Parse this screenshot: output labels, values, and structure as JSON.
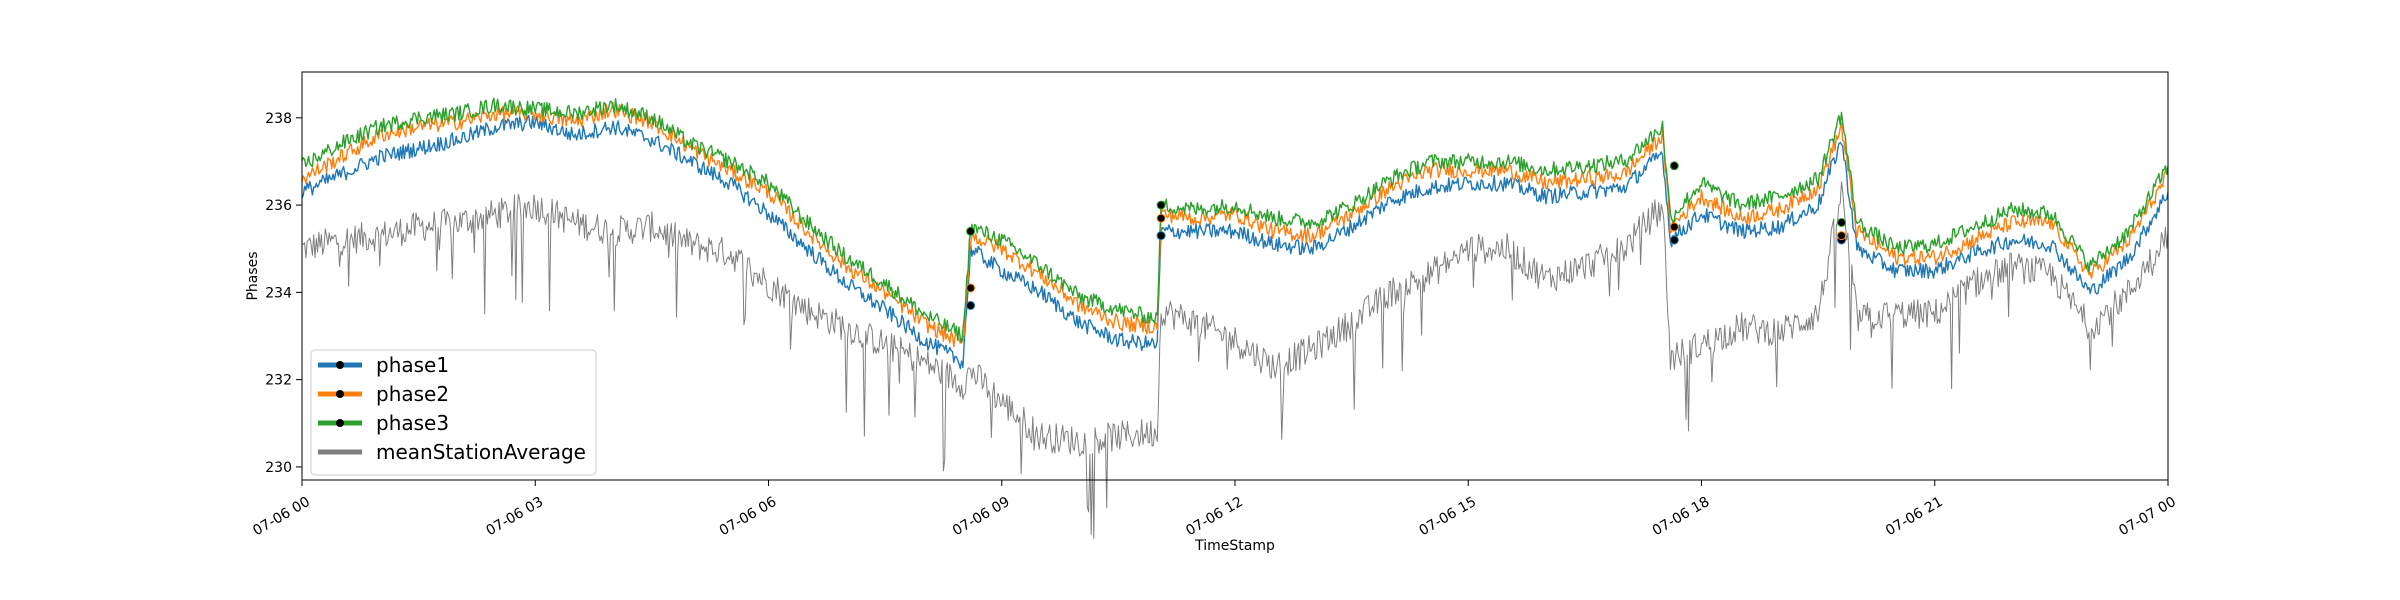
{
  "chart_data": {
    "type": "line",
    "title": "",
    "xlabel": "TimeStamp",
    "ylabel": "Phases",
    "x_range": [
      "07-06 00:00",
      "07-07 00:00"
    ],
    "x_ticks": [
      {
        "hour": 0,
        "label": "07-06 00"
      },
      {
        "hour": 3,
        "label": "07-06 03"
      },
      {
        "hour": 6,
        "label": "07-06 06"
      },
      {
        "hour": 9,
        "label": "07-06 09"
      },
      {
        "hour": 12,
        "label": "07-06 12"
      },
      {
        "hour": 15,
        "label": "07-06 15"
      },
      {
        "hour": 18,
        "label": "07-06 18"
      },
      {
        "hour": 21,
        "label": "07-06 21"
      },
      {
        "hour": 24,
        "label": "07-07 00"
      }
    ],
    "ylim": [
      229.7,
      239.05
    ],
    "y_ticks": [
      230,
      232,
      234,
      236,
      238
    ],
    "grid": false,
    "legend_position": "lower-left",
    "x": [
      0,
      0.5,
      1,
      1.5,
      2,
      2.5,
      3,
      3.5,
      4,
      4.5,
      5,
      5.5,
      6,
      6.5,
      7,
      7.5,
      8,
      8.5,
      8.6,
      9,
      9.5,
      10,
      10.5,
      11,
      11.05,
      11.5,
      12,
      12.5,
      13,
      13.5,
      14,
      14.5,
      15,
      15.5,
      16,
      16.5,
      17,
      17.5,
      17.6,
      18,
      18.5,
      19,
      19.5,
      19.8,
      20,
      20.5,
      21,
      21.5,
      22,
      22.5,
      23,
      23.5,
      24
    ],
    "series": [
      {
        "name": "phase1",
        "color": "#1f77b4",
        "values": [
          236.3,
          236.7,
          237.1,
          237.3,
          237.5,
          237.8,
          237.9,
          237.6,
          237.8,
          237.5,
          237.0,
          236.5,
          235.8,
          235.0,
          234.2,
          233.6,
          232.9,
          232.4,
          235.0,
          234.5,
          234.0,
          233.3,
          232.9,
          232.8,
          235.4,
          235.4,
          235.4,
          235.1,
          235.0,
          235.5,
          236.1,
          236.4,
          236.5,
          236.5,
          236.2,
          236.3,
          236.4,
          237.2,
          235.2,
          235.8,
          235.4,
          235.5,
          236.0,
          237.5,
          235.0,
          234.5,
          234.5,
          234.9,
          235.2,
          235.1,
          234.0,
          234.8,
          236.3
        ]
      },
      {
        "name": "phase2",
        "color": "#ff7f0e",
        "values": [
          236.6,
          237.1,
          237.6,
          237.8,
          237.9,
          238.1,
          238.1,
          237.9,
          238.2,
          237.9,
          237.3,
          236.8,
          236.3,
          235.4,
          234.6,
          234.0,
          233.3,
          232.8,
          235.3,
          235.0,
          234.4,
          233.7,
          233.3,
          233.2,
          235.8,
          235.7,
          235.8,
          235.4,
          235.3,
          235.8,
          236.4,
          236.8,
          236.8,
          236.8,
          236.5,
          236.6,
          236.7,
          237.6,
          235.5,
          236.2,
          235.7,
          235.9,
          236.4,
          237.8,
          235.4,
          234.8,
          234.8,
          235.2,
          235.6,
          235.6,
          234.4,
          235.2,
          236.7
        ]
      },
      {
        "name": "phase3",
        "color": "#2ca02c",
        "values": [
          236.9,
          237.4,
          237.8,
          238.0,
          238.1,
          238.3,
          238.2,
          238.1,
          238.3,
          238.0,
          237.4,
          237.0,
          236.5,
          235.6,
          234.8,
          234.2,
          233.5,
          233.0,
          235.5,
          235.2,
          234.6,
          233.9,
          233.6,
          233.4,
          236.0,
          235.9,
          236.0,
          235.7,
          235.6,
          236.0,
          236.6,
          237.0,
          237.0,
          237.0,
          236.8,
          236.9,
          237.0,
          237.8,
          235.7,
          236.5,
          236.0,
          236.2,
          236.6,
          238.1,
          235.6,
          235.0,
          235.1,
          235.5,
          235.9,
          235.8,
          234.6,
          235.4,
          236.9
        ]
      },
      {
        "name": "meanStationAverage",
        "color": "#7f7f7f",
        "values": [
          235.0,
          235.2,
          235.3,
          235.5,
          235.6,
          235.8,
          236.0,
          235.6,
          235.4,
          235.5,
          235.1,
          234.9,
          234.2,
          233.6,
          233.2,
          232.8,
          232.4,
          231.9,
          232.2,
          231.5,
          230.7,
          230.6,
          230.7,
          230.8,
          233.6,
          233.3,
          232.9,
          232.3,
          232.7,
          233.3,
          234.0,
          234.4,
          235.0,
          235.0,
          234.3,
          234.6,
          235.0,
          236.0,
          232.5,
          232.8,
          233.2,
          233.1,
          233.5,
          236.3,
          233.4,
          233.5,
          233.5,
          234.2,
          234.6,
          234.4,
          233.2,
          234.0,
          235.4
        ]
      }
    ],
    "markers": [
      {
        "series": "phase1",
        "points": [
          [
            8.6,
            233.7
          ],
          [
            11.05,
            235.3
          ],
          [
            17.65,
            235.2
          ],
          [
            19.8,
            235.2
          ]
        ]
      },
      {
        "series": "phase2",
        "points": [
          [
            8.6,
            234.1
          ],
          [
            11.05,
            235.7
          ],
          [
            17.65,
            235.5
          ],
          [
            19.8,
            235.3
          ]
        ]
      },
      {
        "series": "phase3",
        "points": [
          [
            8.6,
            235.4
          ],
          [
            11.05,
            236.0
          ],
          [
            17.65,
            236.9
          ],
          [
            19.8,
            235.6
          ]
        ]
      }
    ]
  }
}
